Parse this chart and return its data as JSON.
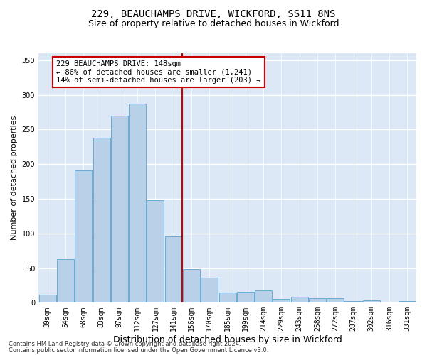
{
  "title1": "229, BEAUCHAMPS DRIVE, WICKFORD, SS11 8NS",
  "title2": "Size of property relative to detached houses in Wickford",
  "xlabel": "Distribution of detached houses by size in Wickford",
  "ylabel": "Number of detached properties",
  "categories": [
    "39sqm",
    "54sqm",
    "68sqm",
    "83sqm",
    "97sqm",
    "112sqm",
    "127sqm",
    "141sqm",
    "156sqm",
    "170sqm",
    "185sqm",
    "199sqm",
    "214sqm",
    "229sqm",
    "243sqm",
    "258sqm",
    "272sqm",
    "287sqm",
    "302sqm",
    "316sqm",
    "331sqm"
  ],
  "values": [
    12,
    63,
    191,
    238,
    270,
    287,
    148,
    96,
    48,
    36,
    15,
    16,
    18,
    5,
    9,
    7,
    6,
    2,
    3,
    0,
    2
  ],
  "bar_color": "#b8d0e8",
  "bar_edge_color": "#6aaad4",
  "vline_color": "#cc0000",
  "annotation_text": "229 BEAUCHAMPS DRIVE: 148sqm\n← 86% of detached houses are smaller (1,241)\n14% of semi-detached houses are larger (203) →",
  "annotation_box_color": "#ffffff",
  "annotation_box_edge": "#cc0000",
  "bg_color": "#dce8f5",
  "grid_color": "#ffffff",
  "fig_bg_color": "#ffffff",
  "ylim": [
    0,
    360
  ],
  "yticks": [
    0,
    50,
    100,
    150,
    200,
    250,
    300,
    350
  ],
  "footnote1": "Contains HM Land Registry data © Crown copyright and database right 2024.",
  "footnote2": "Contains public sector information licensed under the Open Government Licence v3.0.",
  "title1_fontsize": 10,
  "title2_fontsize": 9,
  "xlabel_fontsize": 9,
  "ylabel_fontsize": 8,
  "tick_fontsize": 7,
  "annotation_fontsize": 7.5,
  "footnote_fontsize": 6
}
